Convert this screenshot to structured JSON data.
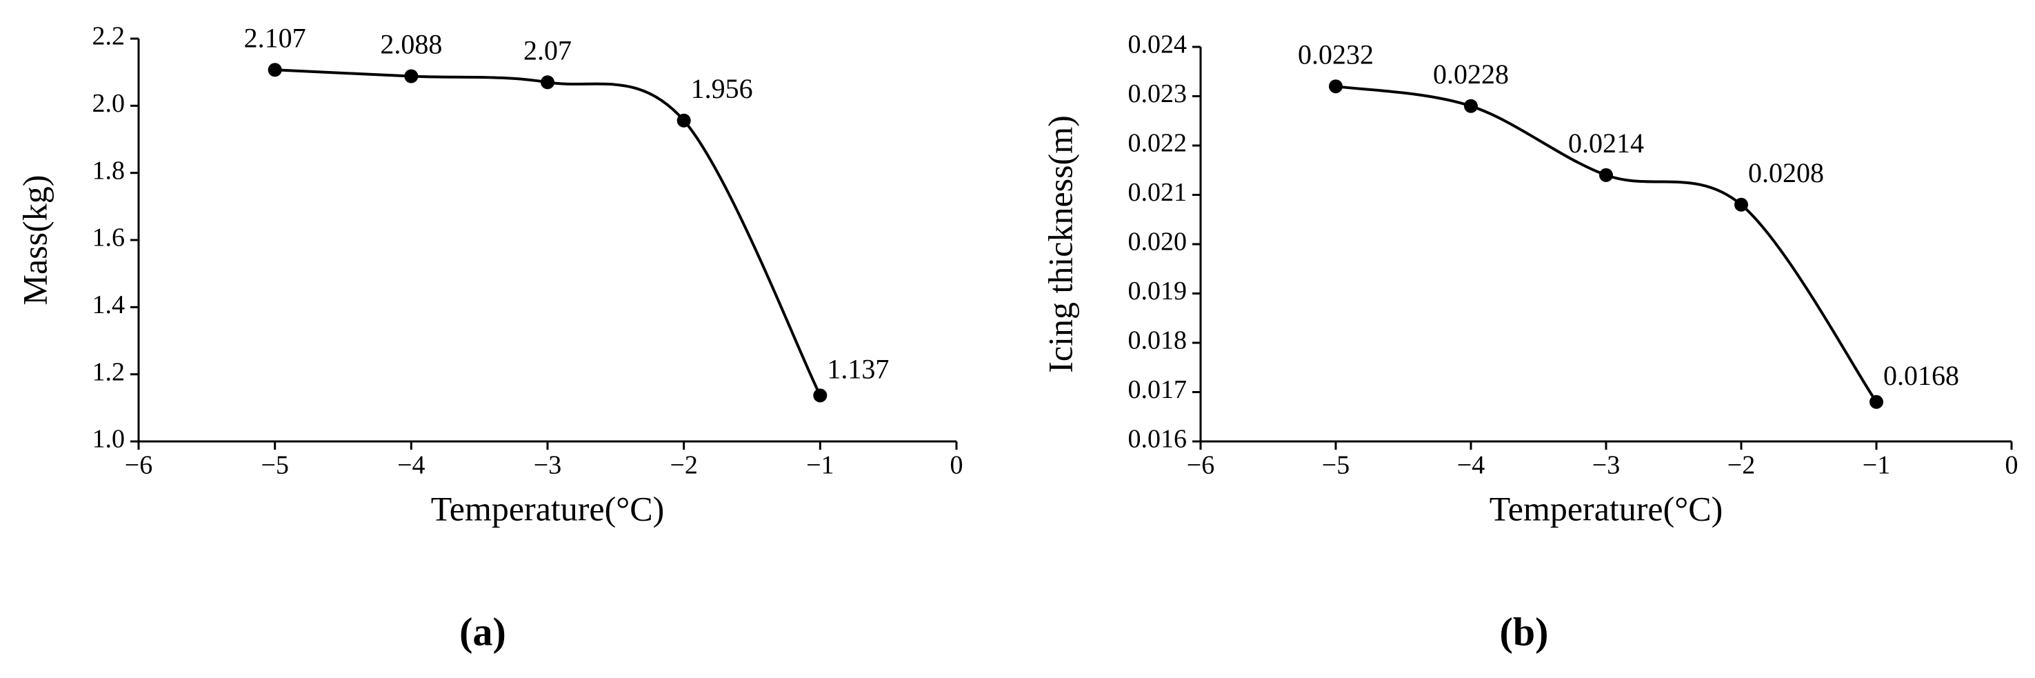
{
  "chart_data": [
    {
      "type": "line",
      "caption": "(a)",
      "xlabel": "Temperature(°C)",
      "ylabel": "Mass(kg)",
      "x": [
        -5,
        -4,
        -3,
        -2,
        -1
      ],
      "values": [
        2.107,
        2.088,
        2.07,
        1.956,
        1.137
      ],
      "color": "#000000",
      "xlim": [
        -6,
        0
      ],
      "xticks": [
        {
          "value": -6,
          "label": "−6"
        },
        {
          "value": -5,
          "label": "−5"
        },
        {
          "value": -4,
          "label": "−4"
        },
        {
          "value": -3,
          "label": "−3"
        },
        {
          "value": -2,
          "label": "−2"
        },
        {
          "value": -1,
          "label": "−1"
        },
        0
      ],
      "ylim": [
        1.0,
        2.2
      ],
      "yticks": [
        {
          "value": 1.0,
          "label": "1.0"
        },
        1.2,
        1.4,
        1.6,
        1.8,
        {
          "value": 2.0,
          "label": "2.0"
        },
        2.2
      ]
    },
    {
      "type": "line",
      "caption": "(b)",
      "xlabel": "Temperature(°C)",
      "ylabel": "Icing thickness(m)",
      "x": [
        -5,
        -4,
        -3,
        -2,
        -1
      ],
      "values": [
        0.0232,
        0.0228,
        0.0214,
        0.0208,
        0.0168
      ],
      "color": "#000000",
      "xlim": [
        -6,
        0
      ],
      "xticks": [
        {
          "value": -6,
          "label": "−6"
        },
        {
          "value": -5,
          "label": "−5"
        },
        {
          "value": -4,
          "label": "−4"
        },
        {
          "value": -3,
          "label": "−3"
        },
        {
          "value": -2,
          "label": "−2"
        },
        {
          "value": -1,
          "label": "−1"
        },
        0
      ],
      "ylim": [
        0.016,
        0.024
      ],
      "yticks": [
        0.016,
        0.017,
        0.018,
        0.019,
        {
          "value": 0.02,
          "label": "0.020"
        },
        0.021,
        0.022,
        0.023,
        0.024
      ]
    }
  ]
}
